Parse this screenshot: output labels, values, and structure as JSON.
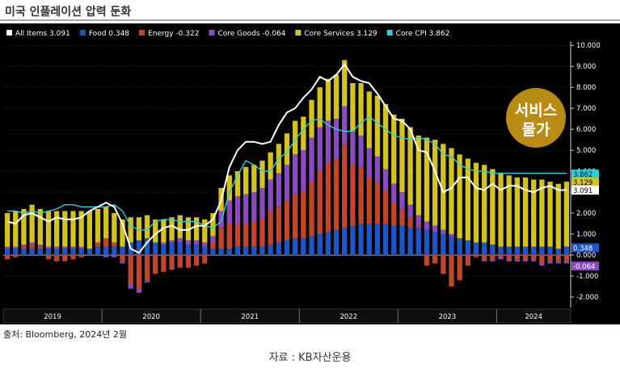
{
  "page": {
    "title": "미국 인플레이션 압력 둔화",
    "source": "출처: Bloomberg, 2024년 2월",
    "caption": "자료 : KB자산운용"
  },
  "chart_data": {
    "type": "bar",
    "legend": [
      {
        "name": "All Items",
        "value": "3.091",
        "color": "#ffffff"
      },
      {
        "name": "Food",
        "value": "0.348",
        "color": "#1e56c8"
      },
      {
        "name": "Energy",
        "value": "-0.322",
        "color": "#c0452a"
      },
      {
        "name": "Core Goods",
        "value": "-0.064",
        "color": "#8a4bc0"
      },
      {
        "name": "Core Services",
        "value": "3.129",
        "color": "#d4c21e"
      },
      {
        "name": "Core CPI",
        "value": "3.862",
        "color": "#2ad0dc"
      }
    ],
    "badge": "서비스\n물가",
    "ylim": [
      -2.5,
      10.2
    ],
    "y_ticks": [
      "-2.000",
      "-1.000",
      "0.000",
      "1.000",
      "2.000",
      "3.000",
      "4.000",
      "5.000",
      "6.000",
      "7.000",
      "8.000",
      "9.000",
      "10.000"
    ],
    "year_labels": [
      "2019",
      "2020",
      "2021",
      "2022",
      "2023",
      "2024"
    ],
    "end_labels": [
      {
        "text": "3.862",
        "color": "#2ad0dc",
        "fg": "#000"
      },
      {
        "text": "3.129",
        "color": "#d4c21e",
        "fg": "#000"
      },
      {
        "text": "3.091",
        "color": "#ffffff",
        "fg": "#000"
      },
      {
        "text": "0.348",
        "color": "#1e56c8",
        "fg": "#fff"
      },
      {
        "text": "-0.064",
        "color": "#8a4bc0",
        "fg": "#fff"
      }
    ],
    "food": [
      0.3,
      0.3,
      0.3,
      0.3,
      0.3,
      0.3,
      0.3,
      0.3,
      0.3,
      0.3,
      0.3,
      0.4,
      0.4,
      0.4,
      0.4,
      0.6,
      0.7,
      0.8,
      0.6,
      0.5,
      0.6,
      0.6,
      0.5,
      0.5,
      0.4,
      0.3,
      0.3,
      0.3,
      0.4,
      0.4,
      0.4,
      0.4,
      0.5,
      0.6,
      0.7,
      0.8,
      0.8,
      0.9,
      1.0,
      1.1,
      1.2,
      1.3,
      1.4,
      1.5,
      1.5,
      1.5,
      1.5,
      1.4,
      1.4,
      1.3,
      1.3,
      1.2,
      1.1,
      1.0,
      0.9,
      0.8,
      0.7,
      0.6,
      0.6,
      0.5,
      0.4,
      0.4,
      0.4,
      0.4,
      0.4,
      0.4,
      0.4,
      0.3,
      0.4
    ],
    "energy": [
      -0.2,
      -0.1,
      0.1,
      0.2,
      0.1,
      -0.2,
      -0.3,
      -0.3,
      -0.2,
      -0.1,
      0.0,
      0.2,
      0.4,
      0.2,
      -0.3,
      -1.4,
      -1.6,
      -1.2,
      -0.9,
      -0.8,
      -0.7,
      -0.6,
      -0.6,
      -0.5,
      -0.4,
      0.3,
      1.0,
      1.2,
      1.1,
      1.1,
      1.2,
      1.3,
      1.6,
      1.7,
      1.9,
      2.1,
      2.2,
      2.6,
      3.0,
      3.3,
      3.4,
      4.0,
      2.9,
      2.7,
      2.2,
      2.0,
      1.6,
      1.1,
      0.8,
      0.5,
      0.1,
      -0.5,
      -0.4,
      -0.9,
      -1.5,
      -1.2,
      -0.5,
      -0.1,
      -0.2,
      -0.2,
      -0.1,
      -0.2,
      -0.2,
      -0.2,
      -0.2,
      -0.4,
      -0.3,
      -0.3,
      -0.3
    ],
    "core_goods": [
      0.1,
      0.1,
      0.1,
      0.1,
      0.1,
      0.1,
      0.1,
      0.1,
      0.1,
      0.1,
      0.0,
      0.0,
      -0.1,
      -0.1,
      -0.1,
      -0.2,
      -0.2,
      -0.1,
      0.0,
      0.1,
      0.1,
      0.2,
      0.2,
      0.2,
      0.2,
      0.3,
      0.8,
      1.1,
      1.3,
      1.4,
      1.4,
      1.5,
      1.5,
      1.6,
      1.7,
      1.9,
      2.0,
      2.1,
      2.1,
      2.0,
      1.9,
      1.8,
      1.6,
      1.5,
      1.4,
      1.2,
      1.0,
      0.9,
      0.8,
      0.6,
      0.5,
      0.4,
      0.3,
      0.2,
      0.1,
      0.0,
      0.0,
      0.0,
      -0.1,
      -0.1,
      -0.1,
      -0.1,
      -0.1,
      -0.1,
      -0.1,
      -0.1,
      -0.1,
      -0.1,
      -0.1
    ],
    "core_services": [
      1.6,
      1.7,
      1.7,
      1.8,
      1.7,
      1.7,
      1.7,
      1.7,
      1.7,
      1.7,
      1.8,
      1.6,
      1.5,
      1.4,
      1.3,
      1.2,
      1.1,
      1.1,
      1.1,
      1.1,
      1.1,
      1.1,
      1.1,
      1.1,
      1.1,
      1.1,
      1.1,
      1.2,
      1.2,
      1.3,
      1.3,
      1.3,
      1.3,
      1.4,
      1.5,
      1.6,
      1.6,
      1.8,
      1.9,
      2.0,
      2.1,
      2.2,
      2.3,
      2.5,
      2.7,
      2.9,
      3.1,
      3.3,
      3.5,
      3.7,
      3.8,
      4.0,
      4.1,
      4.1,
      4.1,
      4.0,
      3.9,
      3.8,
      3.7,
      3.6,
      3.5,
      3.4,
      3.3,
      3.3,
      3.2,
      3.2,
      3.1,
      3.1,
      3.1
    ],
    "all_items": [
      1.6,
      1.5,
      1.9,
      2.0,
      1.8,
      1.6,
      1.8,
      1.7,
      1.7,
      1.8,
      2.1,
      2.3,
      2.5,
      2.3,
      1.5,
      0.3,
      0.1,
      0.6,
      1.0,
      1.3,
      1.4,
      1.2,
      1.2,
      1.4,
      1.4,
      1.7,
      2.6,
      4.2,
      5.0,
      5.4,
      5.4,
      5.3,
      5.4,
      6.2,
      6.8,
      7.0,
      7.5,
      7.9,
      8.5,
      8.3,
      8.6,
      9.1,
      8.5,
      8.3,
      8.2,
      7.7,
      7.1,
      6.5,
      6.4,
      6.0,
      5.0,
      4.9,
      4.0,
      3.0,
      3.2,
      3.7,
      3.7,
      3.2,
      3.1,
      3.4,
      3.1,
      3.3,
      3.3,
      3.1,
      3.0,
      3.2,
      3.3,
      3.1,
      3.1
    ],
    "core_cpi": [
      2.1,
      2.1,
      2.0,
      2.1,
      2.0,
      2.1,
      2.2,
      2.4,
      2.4,
      2.3,
      2.3,
      2.3,
      2.3,
      2.4,
      2.1,
      1.4,
      1.2,
      1.2,
      1.6,
      1.7,
      1.7,
      1.6,
      1.6,
      1.6,
      1.4,
      1.3,
      1.6,
      3.0,
      3.8,
      4.5,
      4.3,
      4.0,
      4.0,
      4.6,
      4.9,
      5.5,
      6.0,
      6.4,
      6.5,
      6.2,
      6.0,
      5.9,
      5.9,
      6.3,
      6.6,
      6.3,
      6.0,
      5.7,
      5.6,
      5.5,
      5.6,
      5.5,
      5.3,
      4.8,
      4.7,
      4.3,
      4.1,
      4.0,
      4.0,
      3.9,
      3.9,
      3.9,
      3.9,
      3.9,
      3.9,
      3.9,
      3.9,
      3.9,
      3.9
    ]
  }
}
